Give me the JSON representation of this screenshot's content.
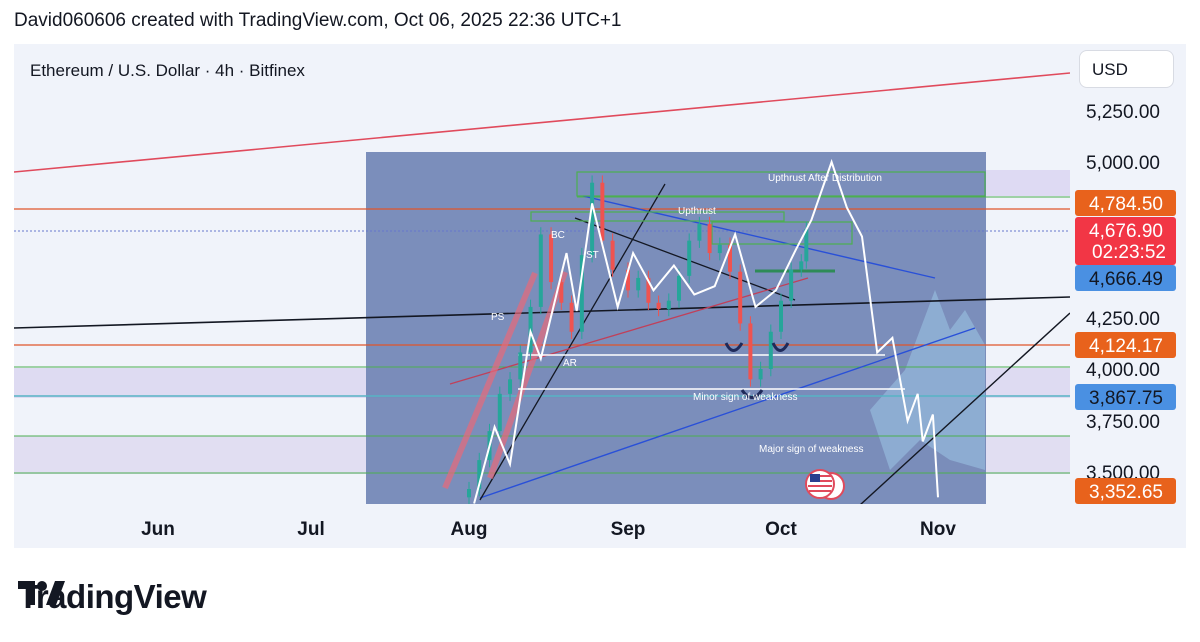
{
  "header": {
    "attribution": "David060606 created with TradingView.com, Oct 06, 2025 22:36 UTC+1"
  },
  "symbol": {
    "title": "Ethereum / U.S. Dollar · 4h · Bitfinex"
  },
  "currency": "USD",
  "brand": {
    "name": "TradingView"
  },
  "colors": {
    "background": "#f0f3fa",
    "annotation_box": "#7185b5",
    "red_line": "#e04a5c",
    "orange_line": "#e0552b",
    "green_line": "#4caf50",
    "blue_line": "#2962ff",
    "price_label_red": "#f23645",
    "price_label_orange": "#e8621c",
    "price_label_blue": "#4a90e2"
  },
  "chart_data": {
    "type": "line",
    "x_ticks": [
      "Jun",
      "Jul",
      "Aug",
      "Sep",
      "Oct",
      "Nov"
    ],
    "y_ticks": [
      "5,250.00",
      "5,000.00",
      "4,250.00",
      "4,000.00",
      "3,750.00",
      "3,500.00"
    ],
    "ylim": [
      3300,
      5550
    ],
    "price_labels": [
      {
        "value": 4784.5,
        "text": "4,784.50",
        "color": "#e8621c"
      },
      {
        "value": 4676.9,
        "text": "4,676.90",
        "sub": "02:23:52",
        "color": "#f23645"
      },
      {
        "value": 4666.49,
        "text": "4,666.49",
        "color": "#4a90e2"
      },
      {
        "value": 4124.17,
        "text": "4,124.17",
        "color": "#e8621c"
      },
      {
        "value": 3867.75,
        "text": "3,867.75",
        "color": "#4a90e2"
      },
      {
        "value": 3352.65,
        "text": "3,352.65",
        "color": "#e8621c"
      }
    ],
    "annotations": [
      "Upthrust After Distribution",
      "Upthrust",
      "BC",
      "ST",
      "PS",
      "AR",
      "Minor sign of weakness",
      "Major sign of weakness"
    ],
    "candle_series": [
      [
        "Aug 1",
        3420
      ],
      [
        "Aug 3",
        3560
      ],
      [
        "Aug 5",
        3700
      ],
      [
        "Aug 7",
        3880
      ],
      [
        "Aug 9",
        3950
      ],
      [
        "Aug 11",
        4080
      ],
      [
        "Aug 13",
        4300
      ],
      [
        "Aug 15",
        4650
      ],
      [
        "Aug 17",
        4420
      ],
      [
        "Aug 19",
        4320
      ],
      [
        "Aug 21",
        4180
      ],
      [
        "Aug 23",
        4550
      ],
      [
        "Aug 25",
        4900
      ],
      [
        "Aug 27",
        4620
      ],
      [
        "Aug 29",
        4480
      ],
      [
        "Sep 1",
        4380
      ],
      [
        "Sep 3",
        4440
      ],
      [
        "Sep 5",
        4320
      ],
      [
        "Sep 7",
        4290
      ],
      [
        "Sep 9",
        4330
      ],
      [
        "Sep 11",
        4450
      ],
      [
        "Sep 13",
        4620
      ],
      [
        "Sep 15",
        4700
      ],
      [
        "Sep 17",
        4560
      ],
      [
        "Sep 19",
        4600
      ],
      [
        "Sep 21",
        4470
      ],
      [
        "Sep 23",
        4220
      ],
      [
        "Sep 25",
        3950
      ],
      [
        "Sep 27",
        4000
      ],
      [
        "Sep 29",
        4180
      ],
      [
        "Oct 1",
        4330
      ],
      [
        "Oct 3",
        4480
      ],
      [
        "Oct 5",
        4520
      ],
      [
        "Oct 6",
        4676.9
      ]
    ],
    "projection_path": [
      [
        "Aug 2",
        3350
      ],
      [
        "Aug 6",
        3720
      ],
      [
        "Aug 9",
        3540
      ],
      [
        "Aug 13",
        4180
      ],
      [
        "Aug 15",
        4050
      ],
      [
        "Aug 20",
        4560
      ],
      [
        "Aug 22",
        4280
      ],
      [
        "Aug 25",
        4800
      ],
      [
        "Aug 30",
        4300
      ],
      [
        "Sep 2",
        4560
      ],
      [
        "Sep 6",
        4380
      ],
      [
        "Sep 10",
        4500
      ],
      [
        "Sep 14",
        4360
      ],
      [
        "Sep 18",
        4400
      ],
      [
        "Sep 22",
        4650
      ],
      [
        "Sep 26",
        4300
      ],
      [
        "Sep 30",
        4380
      ],
      [
        "Oct 4",
        4580
      ],
      [
        "Oct 7",
        4720
      ],
      [
        "Oct 11",
        5000
      ],
      [
        "Oct 14",
        4780
      ],
      [
        "Oct 17",
        4640
      ],
      [
        "Oct 20",
        4080
      ],
      [
        "Oct 23",
        4150
      ],
      [
        "Oct 26",
        3750
      ],
      [
        "Oct 28",
        3880
      ],
      [
        "Oct 29",
        3650
      ],
      [
        "Oct 31",
        3780
      ],
      [
        "Nov 1",
        3380
      ]
    ]
  }
}
